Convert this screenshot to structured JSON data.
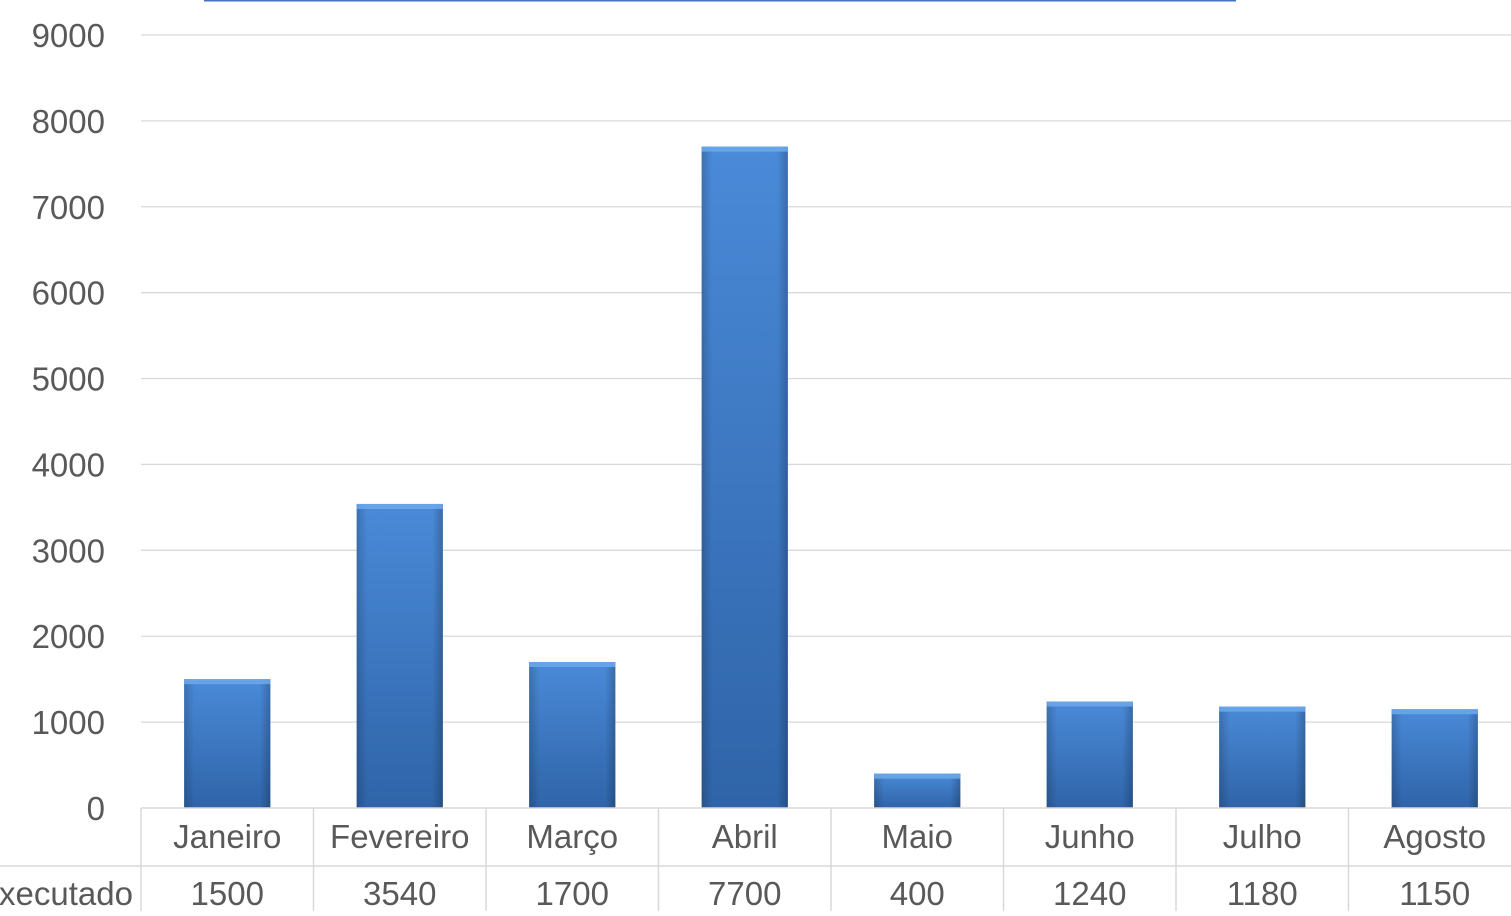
{
  "chart_data": {
    "type": "bar",
    "categories": [
      "Janeiro",
      "Fevereiro",
      "Março",
      "Abril",
      "Maio",
      "Junho",
      "Julho",
      "Agosto"
    ],
    "series": [
      {
        "name": "Executado",
        "values": [
          1500,
          3540,
          1700,
          7700,
          400,
          1240,
          1180,
          1150
        ]
      }
    ],
    "table_row_label": "Executado",
    "table_values": [
      "1500",
      "3540",
      "1700",
      "7700",
      "400",
      "1240",
      "1180",
      "1150"
    ],
    "ylim": [
      0,
      9000
    ],
    "yticks": [
      "0",
      "1000",
      "2000",
      "3000",
      "4000",
      "5000",
      "6000",
      "7000",
      "8000",
      "9000"
    ],
    "grid": true,
    "legend": "none",
    "data_table": true,
    "colors": {
      "bar": "#3a78c4",
      "bar_light": "#4a8ad8",
      "bar_dark": "#2c5f9e",
      "grid": "#d9d9d9",
      "text": "#595959",
      "top_line": "#4472c4"
    }
  }
}
